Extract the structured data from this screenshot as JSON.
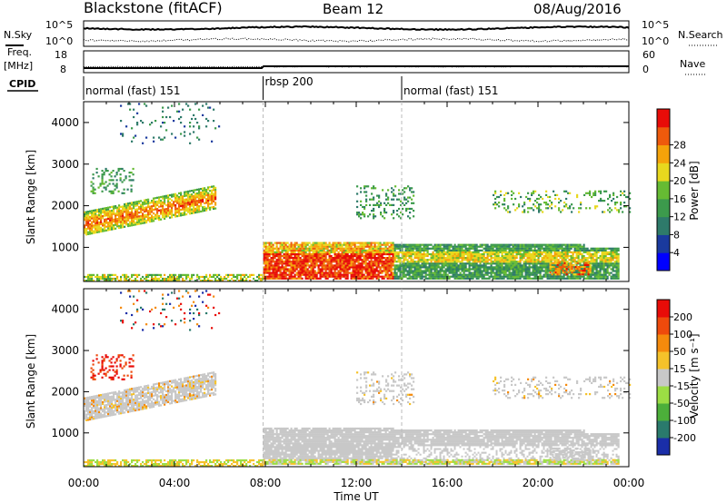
{
  "header": {
    "site": "Blackstone (fitACF)",
    "beam": "Beam 12",
    "date": "08/Aug/2016"
  },
  "top_panels": {
    "nsky_label": "N.Sky",
    "nsearch_label": "N.Search",
    "noise_ticks": [
      "10^5",
      "10^0"
    ],
    "freq_label_1": "Freq.",
    "freq_label_2": "[MHz]",
    "freq_ticks": [
      "18",
      "8"
    ],
    "nave_label": "Nave",
    "nave_ticks": [
      "60",
      "0"
    ],
    "cpid_label": "CPID",
    "cpid_segments": [
      {
        "name": "normal (fast) 151",
        "start_hour": 0.0,
        "end_hour": 7.9
      },
      {
        "name": "rbsp 200",
        "start_hour": 7.9,
        "end_hour": 14.0
      },
      {
        "name": "normal (fast) 151",
        "start_hour": 14.0,
        "end_hour": 24.0
      }
    ]
  },
  "chart_data": [
    {
      "type": "heatmap",
      "title": "",
      "xlabel": "Time UT",
      "ylabel": "Slant Range [km]",
      "xlim_hours": [
        0,
        24
      ],
      "ylim_km": [
        180,
        4500
      ],
      "x_ticks": [
        "00:00",
        "04:00",
        "08:00",
        "12:00",
        "16:00",
        "20:00",
        "00:00"
      ],
      "y_ticks": [
        1000,
        2000,
        3000,
        4000
      ],
      "colorbar": {
        "label": "Power [dB]",
        "ticks": [
          "4",
          "8",
          "12",
          "16",
          "20",
          "24",
          "28"
        ],
        "colors": [
          "#0000ff",
          "#1a3a9e",
          "#2e7a6a",
          "#3c9a4c",
          "#66bb33",
          "#e8d81e",
          "#f5a30a",
          "#ee5a0c",
          "#e80c08"
        ]
      },
      "regions": [
        {
          "t0": 0.0,
          "t1": 5.8,
          "r0": 1300,
          "r1": 2500,
          "level": "mid-high"
        },
        {
          "t0": 7.9,
          "t1": 23.5,
          "r0": 250,
          "r1": 1150,
          "level": "high"
        },
        {
          "t0": 11.5,
          "t1": 14.5,
          "r0": 1700,
          "r1": 2500,
          "level": "low"
        },
        {
          "t0": 18.0,
          "t1": 24.0,
          "r0": 1800,
          "r1": 2400,
          "level": "low-mid"
        }
      ]
    },
    {
      "type": "heatmap",
      "title": "",
      "xlabel": "Time UT",
      "ylabel": "Slant Range [km]",
      "xlim_hours": [
        0,
        24
      ],
      "ylim_km": [
        180,
        4500
      ],
      "x_ticks": [
        "00:00",
        "04:00",
        "08:00",
        "12:00",
        "16:00",
        "20:00",
        "00:00"
      ],
      "y_ticks": [
        1000,
        2000,
        3000,
        4000
      ],
      "colorbar": {
        "label": "Velocity [m s⁻¹]",
        "ticks": [
          "200",
          "100",
          "50",
          "15",
          "-15",
          "-50",
          "-100",
          "-200"
        ],
        "colors": [
          "#1a2ea8",
          "#2a7a6c",
          "#4caf3a",
          "#9cdd44",
          "#c8c8c8",
          "#f5c22a",
          "#f58a0c",
          "#ee4a0c",
          "#e80c08"
        ]
      },
      "ground_scatter_color": "#c8c8c8"
    }
  ]
}
